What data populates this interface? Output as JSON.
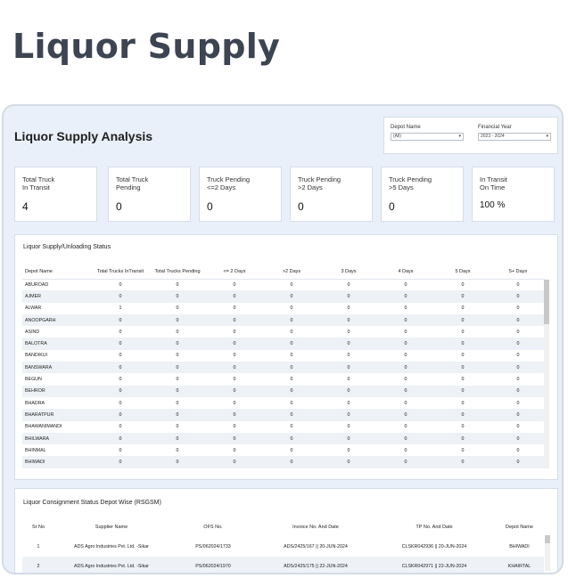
{
  "page_title": "Liquor Supply",
  "dashboard_title": "Liquor Supply Analysis",
  "filters": {
    "depot_label": "Depot Name",
    "depot_value": "(All)",
    "year_label": "Financial Year",
    "year_value": "2023 - 2024"
  },
  "kpis": [
    {
      "label": "Total Truck\nIn Transit",
      "value": "4"
    },
    {
      "label": "Total Truck\nPending",
      "value": "0"
    },
    {
      "label": "Truck Pending\n<=2 Days",
      "value": "0"
    },
    {
      "label": "Truck Pending\n>2 Days",
      "value": "0"
    },
    {
      "label": "Truck Pending\n>5 Days",
      "value": "0"
    },
    {
      "label": "In Transit\nOn Time",
      "value": "100 %"
    }
  ],
  "status_panel": {
    "title": "Liquor Supply/Unloading Status",
    "columns": [
      "Depot Name",
      "Total Trucks InTransit",
      "Total Trucks Pending",
      "<= 2 Days",
      ">2 Days",
      "3 Days",
      "4 Days",
      "5 Days",
      "5+ Days"
    ],
    "rows": [
      [
        "ABUROAD",
        "0",
        "0",
        "0",
        "0",
        "0",
        "0",
        "0",
        "0"
      ],
      [
        "AJMER",
        "0",
        "0",
        "0",
        "0",
        "0",
        "0",
        "0",
        "0"
      ],
      [
        "ALWAR",
        "1",
        "0",
        "0",
        "0",
        "0",
        "0",
        "0",
        "0"
      ],
      [
        "ANOOPGARH",
        "0",
        "0",
        "0",
        "0",
        "0",
        "0",
        "0",
        "0"
      ],
      [
        "ASIND",
        "0",
        "0",
        "0",
        "0",
        "0",
        "0",
        "0",
        "0"
      ],
      [
        "BALOTRA",
        "0",
        "0",
        "0",
        "0",
        "0",
        "0",
        "0",
        "0"
      ],
      [
        "BANDIKUI",
        "0",
        "0",
        "0",
        "0",
        "0",
        "0",
        "0",
        "0"
      ],
      [
        "BANSWARA",
        "0",
        "0",
        "0",
        "0",
        "0",
        "0",
        "0",
        "0"
      ],
      [
        "BEGUN",
        "0",
        "0",
        "0",
        "0",
        "0",
        "0",
        "0",
        "0"
      ],
      [
        "BEHROR",
        "0",
        "0",
        "0",
        "0",
        "0",
        "0",
        "0",
        "0"
      ],
      [
        "BHADRA",
        "0",
        "0",
        "0",
        "0",
        "0",
        "0",
        "0",
        "0"
      ],
      [
        "BHARATPUR",
        "0",
        "0",
        "0",
        "0",
        "0",
        "0",
        "0",
        "0"
      ],
      [
        "BHAWANIMANDI",
        "0",
        "0",
        "0",
        "0",
        "0",
        "0",
        "0",
        "0"
      ],
      [
        "BHILWARA",
        "0",
        "0",
        "0",
        "0",
        "0",
        "0",
        "0",
        "0"
      ],
      [
        "BHINMAL",
        "0",
        "0",
        "0",
        "0",
        "0",
        "0",
        "0",
        "0"
      ],
      [
        "BHIWADI",
        "0",
        "0",
        "0",
        "0",
        "0",
        "0",
        "0",
        "0"
      ]
    ]
  },
  "consignment_panel": {
    "title": "Liquor Consignment Status Depot Wise (RSGSM)",
    "columns": [
      "Sr No",
      "Supplier Name",
      "OFS No.",
      "Invoice No. And Date",
      "TP No. And Date",
      "Depot Name"
    ],
    "rows": [
      [
        "1",
        "ADS Agro Industries Pvt. Ltd. -Sikar",
        "PS/062024/1733",
        "ADS/2425/167 || 20-JUN-2024",
        "CLSKR042936 || 20-JUN-2024",
        "BHIWADI"
      ],
      [
        "2",
        "ADS Agro Industries Pvt. Ltd. -Sikar",
        "PS/062024/1970",
        "ADS/2425/175 || 22-JUN-2024",
        "CLSKR042971 || 22-JUN-2024",
        "KHAIRTAL"
      ]
    ]
  }
}
